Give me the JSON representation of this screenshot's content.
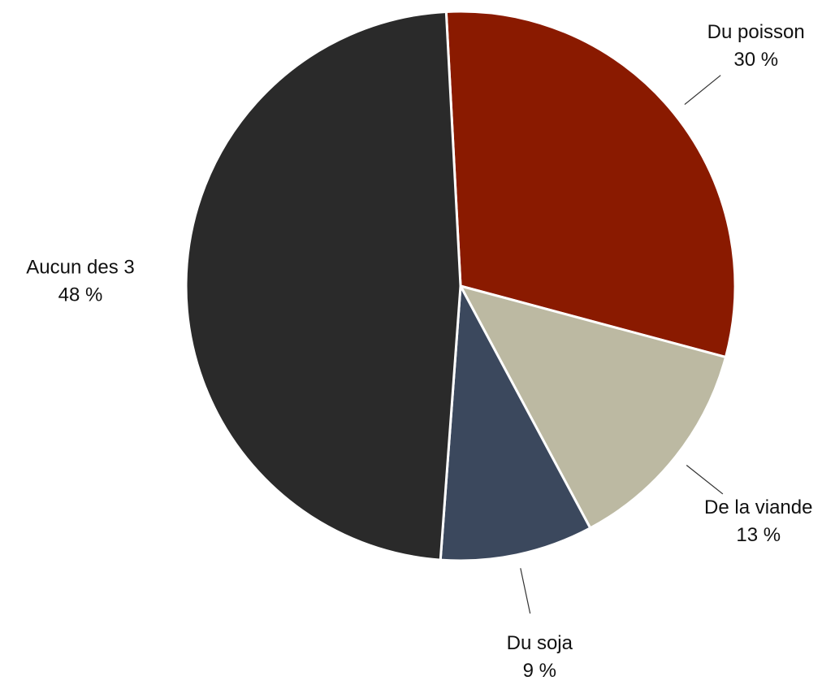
{
  "chart_data": {
    "type": "pie",
    "categories": [
      "Du poisson",
      "De la viande",
      "Du soja",
      "Aucun des 3"
    ],
    "values": [
      30,
      13,
      9,
      48
    ],
    "value_labels": [
      "30 %",
      "13 %",
      "9 %",
      "48 %"
    ],
    "colors": [
      "#8a1a00",
      "#bcb9a2",
      "#3b485d",
      "#2a2a2a"
    ]
  }
}
